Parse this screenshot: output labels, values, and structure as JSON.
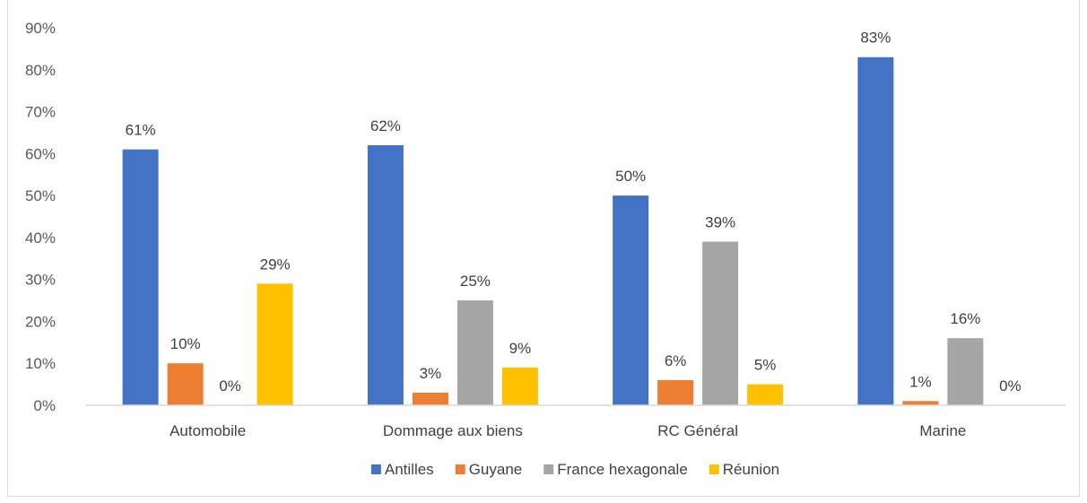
{
  "chart_data": {
    "type": "bar",
    "title": "",
    "xlabel": "",
    "ylabel": "",
    "ylim": [
      0,
      90
    ],
    "yticks": [
      "0%",
      "10%",
      "20%",
      "30%",
      "40%",
      "50%",
      "60%",
      "70%",
      "80%",
      "90%"
    ],
    "grid": false,
    "legend_position": "bottom",
    "categories": [
      "Automobile",
      "Dommage aux biens",
      "RC Général",
      "Marine"
    ],
    "series": [
      {
        "name": "Antilles",
        "color": "#4472C4",
        "values": [
          61,
          62,
          50,
          83
        ],
        "labels": [
          "61%",
          "62%",
          "50%",
          "83%"
        ]
      },
      {
        "name": "Guyane",
        "color": "#ED7D31",
        "values": [
          10,
          3,
          6,
          1
        ],
        "labels": [
          "10%",
          "3%",
          "6%",
          "1%"
        ]
      },
      {
        "name": "France hexagonale",
        "color": "#A5A5A5",
        "values": [
          0,
          25,
          39,
          16
        ],
        "labels": [
          "0%",
          "25%",
          "39%",
          "16%"
        ]
      },
      {
        "name": "Réunion",
        "color": "#FFC000",
        "values": [
          29,
          9,
          5,
          0
        ],
        "labels": [
          "29%",
          "9%",
          "5%",
          "0%"
        ]
      }
    ]
  }
}
